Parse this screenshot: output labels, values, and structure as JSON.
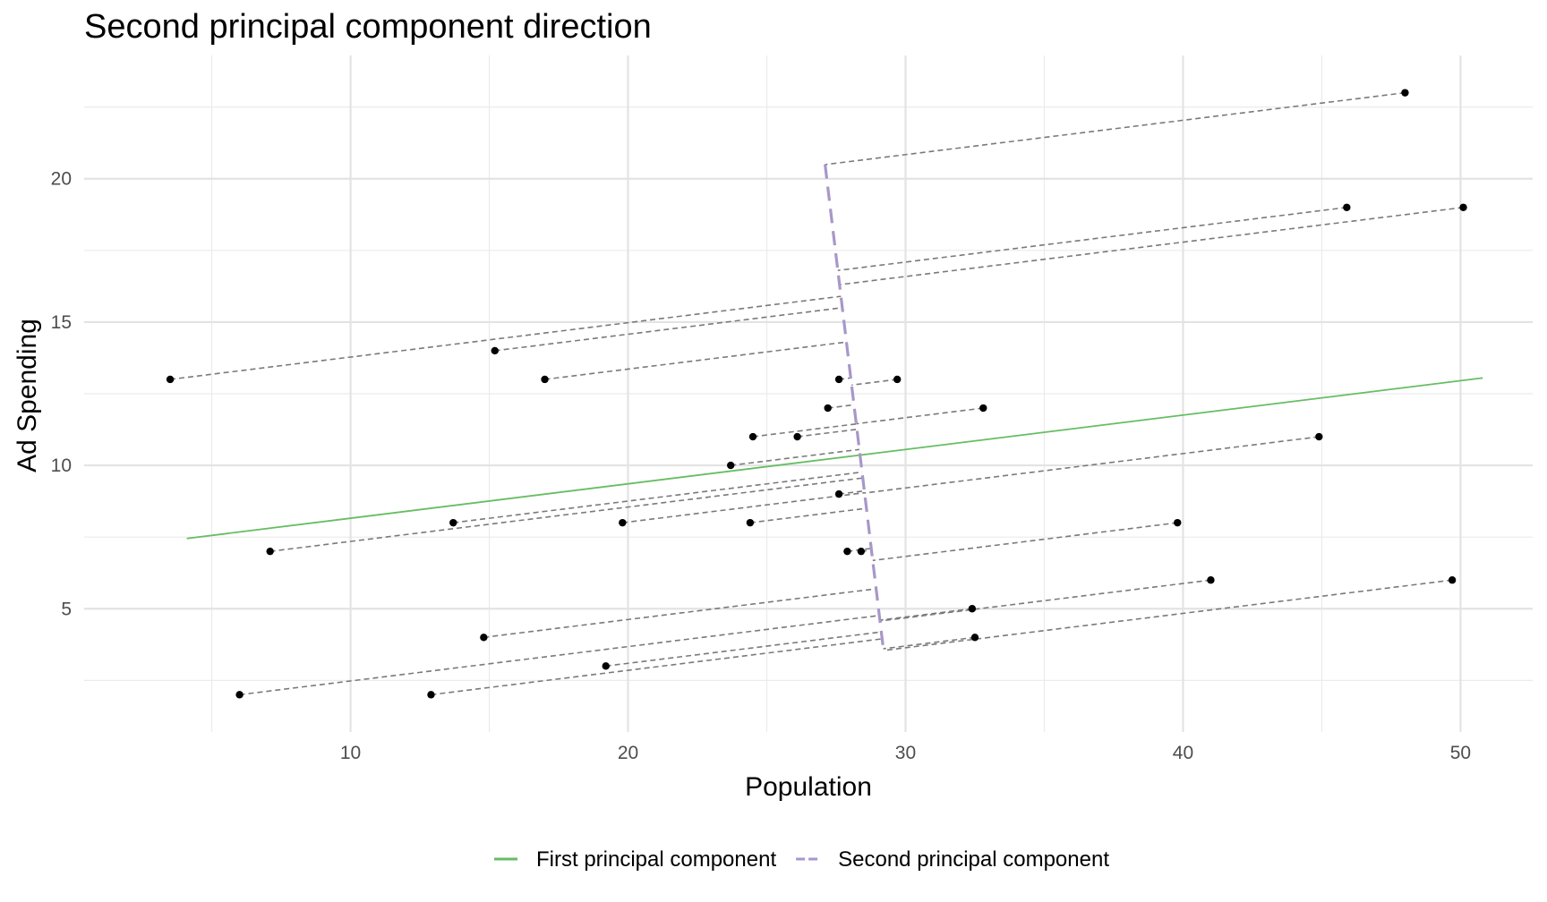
{
  "chart_data": {
    "type": "scatter",
    "title": "Second principal component direction",
    "xlabel": "Population",
    "ylabel": "Ad Spending",
    "xlim": [
      0.4,
      52.6
    ],
    "ylim": [
      0.7,
      24.3
    ],
    "x_ticks": [
      10,
      20,
      30,
      40,
      50
    ],
    "y_ticks": [
      5,
      10,
      15,
      20
    ],
    "x_ticks_minor": [
      5,
      15,
      25,
      35,
      45
    ],
    "y_ticks_minor": [
      2.5,
      7.5,
      12.5,
      17.5,
      22.5
    ],
    "grid": true,
    "legend_position": "bottom",
    "points": [
      {
        "x": 3.5,
        "y": 13
      },
      {
        "x": 15.2,
        "y": 14
      },
      {
        "x": 17.0,
        "y": 13
      },
      {
        "x": 48.0,
        "y": 23
      },
      {
        "x": 45.9,
        "y": 19
      },
      {
        "x": 50.1,
        "y": 19
      },
      {
        "x": 27.6,
        "y": 13
      },
      {
        "x": 29.7,
        "y": 13
      },
      {
        "x": 27.2,
        "y": 12
      },
      {
        "x": 32.8,
        "y": 12
      },
      {
        "x": 24.5,
        "y": 11
      },
      {
        "x": 26.1,
        "y": 11
      },
      {
        "x": 44.9,
        "y": 11
      },
      {
        "x": 23.7,
        "y": 10
      },
      {
        "x": 27.6,
        "y": 9
      },
      {
        "x": 13.7,
        "y": 8
      },
      {
        "x": 19.8,
        "y": 8
      },
      {
        "x": 24.4,
        "y": 8
      },
      {
        "x": 39.8,
        "y": 8
      },
      {
        "x": 7.1,
        "y": 7
      },
      {
        "x": 27.9,
        "y": 7
      },
      {
        "x": 28.4,
        "y": 7
      },
      {
        "x": 41.0,
        "y": 6
      },
      {
        "x": 49.7,
        "y": 6
      },
      {
        "x": 32.4,
        "y": 5
      },
      {
        "x": 14.8,
        "y": 4
      },
      {
        "x": 32.5,
        "y": 4
      },
      {
        "x": 19.2,
        "y": 3
      },
      {
        "x": 6.0,
        "y": 2
      },
      {
        "x": 12.9,
        "y": 2
      }
    ],
    "series": [
      {
        "name": "First principal component",
        "color": "#66bd63",
        "style": "solid",
        "x": [
          4.1,
          50.8
        ],
        "y": [
          7.45,
          13.05
        ]
      },
      {
        "name": "Second principal component",
        "color": "#a897c8",
        "style": "dashed",
        "x": [
          27.1,
          29.2
        ],
        "y": [
          20.5,
          3.6
        ]
      }
    ],
    "projection_line_color": "#7a7a7a",
    "point_color": "#000000"
  }
}
